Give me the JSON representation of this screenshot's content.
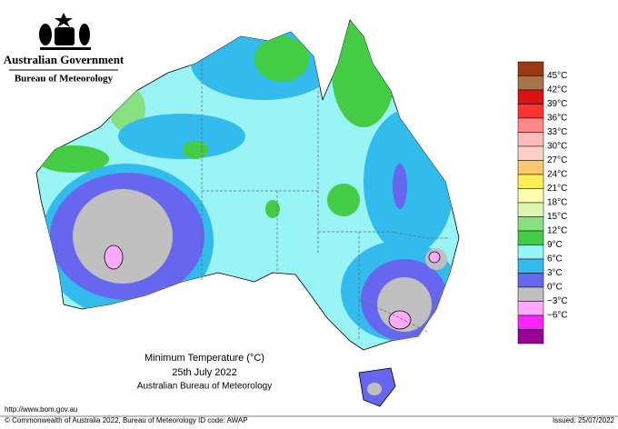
{
  "header": {
    "government": "Australian Government",
    "agency": "Bureau of Meteorology"
  },
  "title": {
    "line1": "Minimum Temperature (°C)",
    "line2": "25th July 2022",
    "line3": "Australian Bureau of Meteorology"
  },
  "legend": {
    "labels": [
      "45°C",
      "42°C",
      "39°C",
      "36°C",
      "33°C",
      "30°C",
      "27°C",
      "24°C",
      "21°C",
      "18°C",
      "15°C",
      "12°C",
      "9°C",
      "6°C",
      "3°C",
      "0°C",
      "−3°C",
      "−6°C"
    ],
    "colors": [
      "#9a3a10",
      "#a9744a",
      "#dd1111",
      "#ff3333",
      "#ff8888",
      "#ffbbbb",
      "#ffd0c8",
      "#ffc870",
      "#ffee55",
      "#ffffb0",
      "#ddf5b0",
      "#88e080",
      "#44cc44",
      "#99f5f5",
      "#33bbee",
      "#6666ee",
      "#c0c0c0",
      "#ffaaff",
      "#ff22ff",
      "#990099"
    ]
  },
  "footer": {
    "url": "http://www.bom.gov.au",
    "copyright": "© Commonwealth of Australia 2022, Bureau of Meteorology",
    "id_code": "ID code: AWAP",
    "issued": "Issued: 25/07/2022"
  }
}
